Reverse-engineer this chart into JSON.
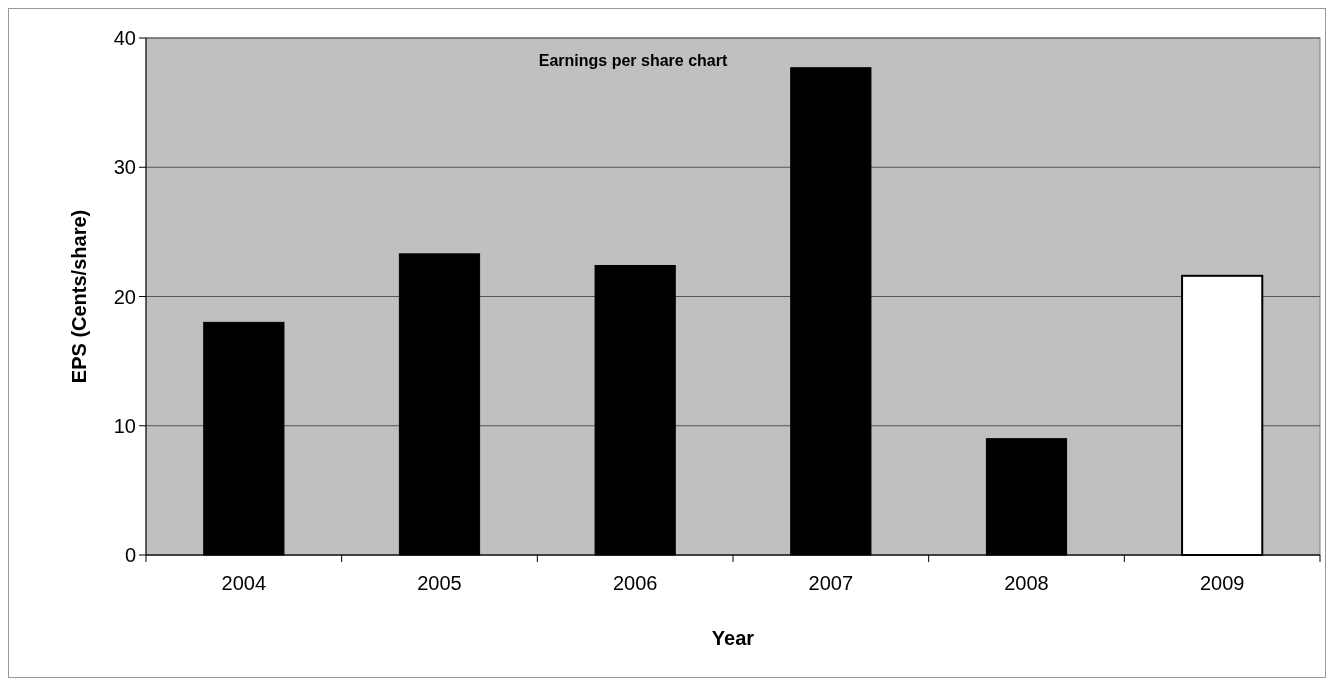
{
  "chart_data": {
    "type": "bar",
    "title": "Earnings per share chart",
    "xlabel": "Year",
    "ylabel": "EPS (Cents/share)",
    "categories": [
      "2004",
      "2005",
      "2006",
      "2007",
      "2008",
      "2009"
    ],
    "values": [
      18,
      23.3,
      22.4,
      37.7,
      9,
      21.6
    ],
    "colors": [
      "#000000",
      "#000000",
      "#000000",
      "#000000",
      "#000000",
      "#ffffff"
    ],
    "ylim": [
      0,
      40
    ],
    "yticks": [
      0,
      10,
      20,
      30,
      40
    ],
    "grid": "y"
  }
}
